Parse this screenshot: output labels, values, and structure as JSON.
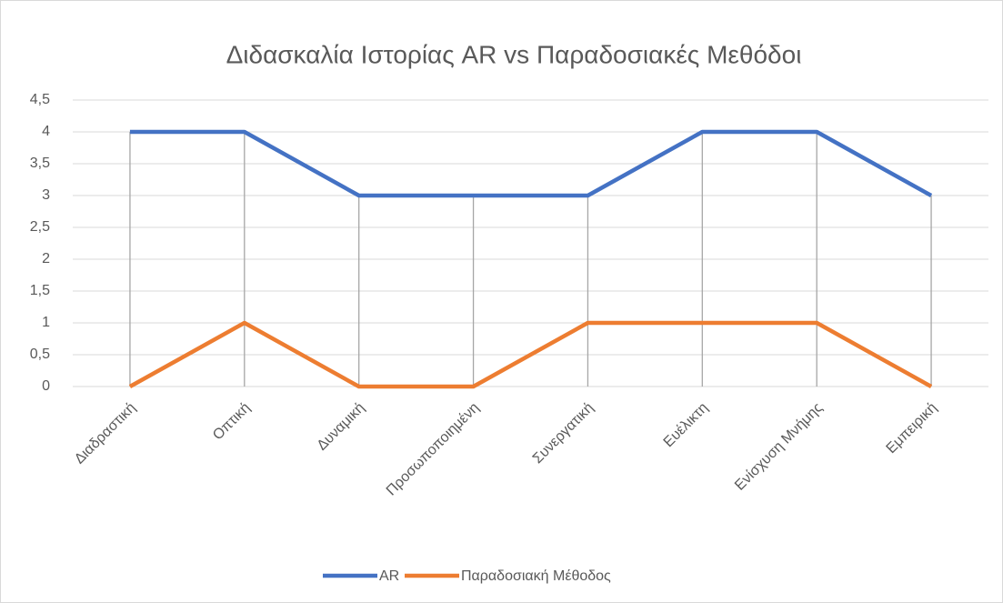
{
  "chart_data": {
    "type": "line",
    "title": "Διδασκαλία Ιστορίας AR vs Παραδοσιακές Μεθόδοι",
    "categories": [
      "Διαδραστική",
      "Οπτική",
      "Δυναμική",
      "Προσωποποιημένη",
      "Συνεργατική",
      "Ευέλικτη",
      "Ενίσχυση Μνήμης",
      "Εμπειρική"
    ],
    "series": [
      {
        "name": "AR",
        "color": "#4472c4",
        "values": [
          4,
          4,
          3,
          3,
          3,
          4,
          4,
          3
        ]
      },
      {
        "name": "Παραδοσιακή Μέθοδος",
        "color": "#ed7d31",
        "values": [
          0,
          1,
          0,
          0,
          1,
          1,
          1,
          0
        ]
      }
    ],
    "ylim": [
      0,
      4.5
    ],
    "yticks": [
      0,
      {
        "value": 0.5,
        "label": "0,5"
      },
      1,
      {
        "value": 1.5,
        "label": "1,5"
      },
      2,
      {
        "value": 2.5,
        "label": "2,5"
      },
      3,
      {
        "value": 3.5,
        "label": "3,5"
      },
      4,
      {
        "value": 4.5,
        "label": "4,5"
      }
    ],
    "grid": true,
    "drop_lines": true,
    "legend": "bottom"
  }
}
